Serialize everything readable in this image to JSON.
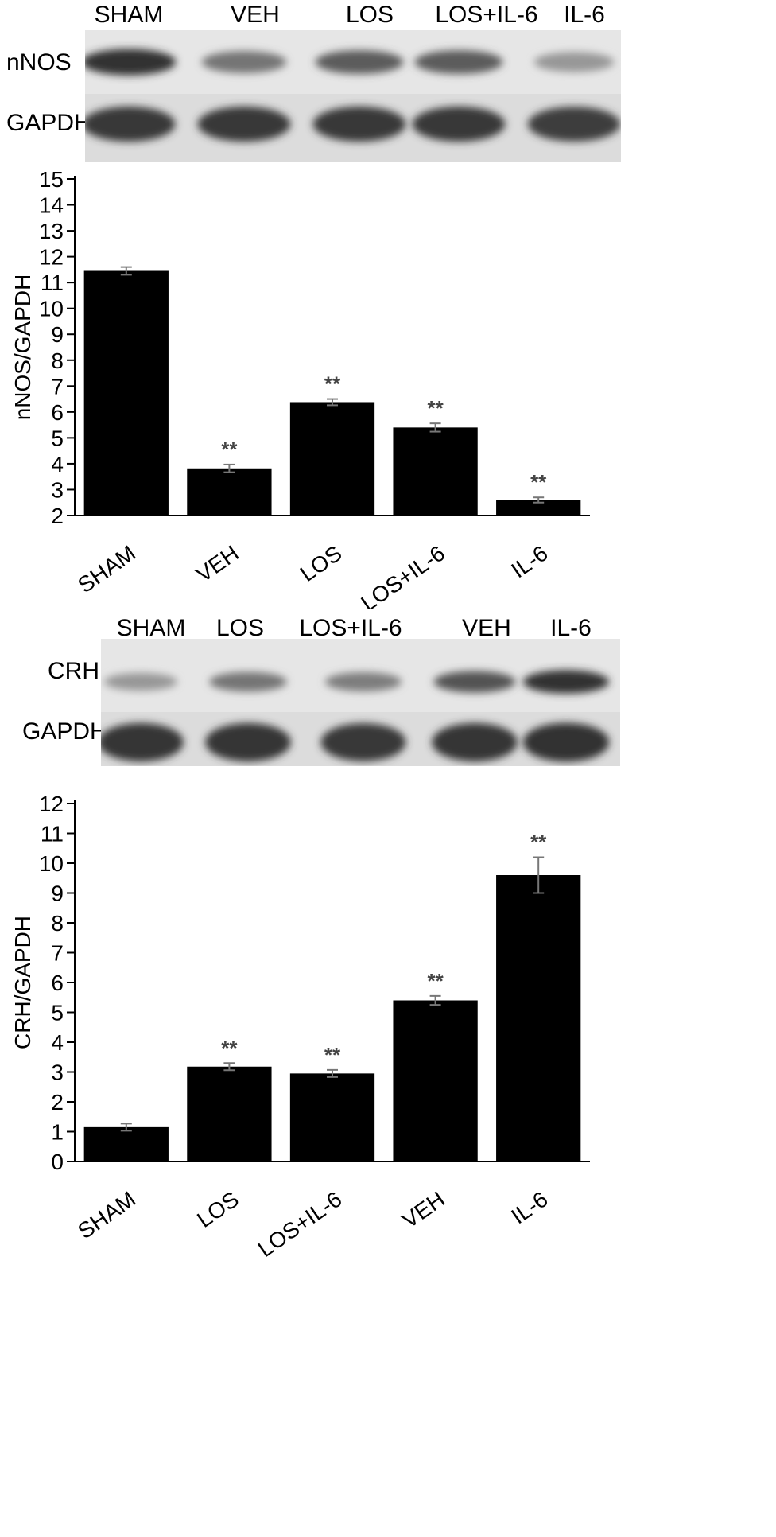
{
  "blot_a": {
    "lanes": [
      "SHAM",
      "VEH",
      "LOS",
      "LOS+IL-6",
      "IL-6"
    ],
    "rows": [
      "nNOS",
      "GAPDH"
    ],
    "band_intensity": {
      "nNOS": [
        0.95,
        0.55,
        0.7,
        0.7,
        0.35
      ],
      "GAPDH": [
        0.9,
        0.9,
        0.9,
        0.9,
        0.88
      ]
    }
  },
  "blot_b": {
    "lanes": [
      "SHAM",
      "LOS",
      "LOS+IL-6",
      "VEH",
      "IL-6"
    ],
    "rows": [
      "CRH",
      "GAPDH"
    ],
    "band_intensity": {
      "CRH": [
        0.35,
        0.55,
        0.5,
        0.75,
        0.95
      ],
      "GAPDH": [
        0.92,
        0.92,
        0.9,
        0.92,
        0.95
      ]
    }
  },
  "chart_data": [
    {
      "type": "bar",
      "categories": [
        "SHAM",
        "VEH",
        "LOS",
        "LOS+IL-6",
        "IL-6"
      ],
      "values": [
        11.45,
        3.82,
        6.38,
        5.4,
        2.6
      ],
      "errors": [
        0.15,
        0.15,
        0.12,
        0.16,
        0.1
      ],
      "annotations": [
        "",
        "**",
        "**",
        "**",
        "**"
      ],
      "title": "",
      "xlabel": "",
      "ylabel": "nNOS/GAPDH",
      "ylim": [
        2,
        15
      ],
      "yticks": [
        2,
        3,
        4,
        5,
        6,
        7,
        8,
        9,
        10,
        11,
        12,
        13,
        14,
        15
      ],
      "bar_color": "#000000",
      "grid": false
    },
    {
      "type": "bar",
      "categories": [
        "SHAM",
        "LOS",
        "LOS+IL-6",
        "VEH",
        "IL-6"
      ],
      "values": [
        1.15,
        3.18,
        2.95,
        5.4,
        9.6
      ],
      "errors": [
        0.12,
        0.12,
        0.12,
        0.15,
        0.6
      ],
      "annotations": [
        "",
        "**",
        "**",
        "**",
        "**"
      ],
      "title": "",
      "xlabel": "",
      "ylabel": "CRH/GAPDH",
      "ylim": [
        0,
        12
      ],
      "yticks": [
        0,
        1,
        2,
        3,
        4,
        5,
        6,
        7,
        8,
        9,
        10,
        11,
        12
      ],
      "bar_color": "#000000",
      "grid": false
    }
  ]
}
